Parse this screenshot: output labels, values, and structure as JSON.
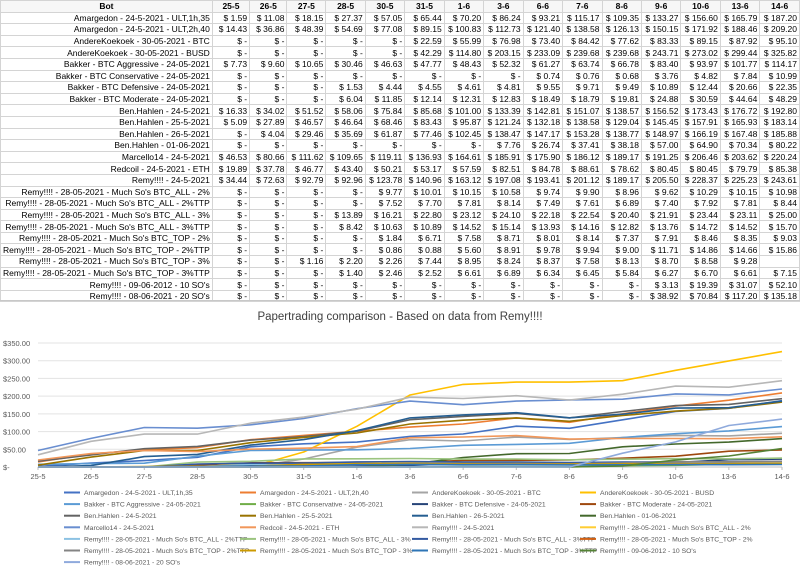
{
  "chart_data": {
    "type": "line",
    "title": "Papertrading comparison - Based on data from Remy!!!!",
    "header_bot": "Bot",
    "x": [
      "25-5",
      "26-5",
      "27-5",
      "28-5",
      "30-5",
      "31-5",
      "1-6",
      "3-6",
      "6-6",
      "7-6",
      "8-6",
      "9-6",
      "10-6",
      "13-6",
      "14-6"
    ],
    "yticks": [
      "$350.00",
      "$300.00",
      "$250.00",
      "$200.00",
      "$150.00",
      "$100.00",
      "$50.00",
      "$-"
    ],
    "ylim": [
      0,
      350
    ],
    "series": [
      {
        "name": "Amargedon - 24-5-2021 - ULT,1h,35",
        "color": "#4472c4",
        "cells": [
          "$ 1.59",
          "$ 11.08",
          "$ 18.15",
          "$ 27.37",
          "$ 57.05",
          "$ 65.44",
          "$ 70.20",
          "$ 86.24",
          "$ 93.21",
          "$ 115.17",
          "$ 109.35",
          "$ 133.27",
          "$ 156.60",
          "$ 165.79",
          "$ 187.20"
        ],
        "values": [
          1.59,
          11.08,
          18.15,
          27.37,
          57.05,
          65.44,
          70.2,
          86.24,
          93.21,
          115.17,
          109.35,
          133.27,
          156.6,
          165.79,
          187.2
        ]
      },
      {
        "name": "Amargedon - 24-5-2021 - ULT,2h,40",
        "color": "#ed7d31",
        "cells": [
          "$ 14.43",
          "$ 36.86",
          "$ 48.39",
          "$ 54.69",
          "$ 77.08",
          "$ 89.15",
          "$ 100.83",
          "$ 112.73",
          "$ 121.40",
          "$ 138.58",
          "$ 126.13",
          "$ 150.15",
          "$ 171.92",
          "$ 188.46",
          "$ 209.20"
        ],
        "values": [
          14.43,
          36.86,
          48.39,
          54.69,
          77.08,
          89.15,
          100.83,
          112.73,
          121.4,
          138.58,
          126.13,
          150.15,
          171.92,
          188.46,
          209.2
        ]
      },
      {
        "name": "AndereKoekoek - 30-05-2021 - BTC",
        "color": "#a5a5a5",
        "cells": [
          "$ -",
          "$ -",
          "$ -",
          "$ -",
          "$ -",
          "$ 22.59",
          "$ 55.99",
          "$ 76.98",
          "$ 73.40",
          "$ 84.42",
          "$ 77.62",
          "$ 83.33",
          "$ 89.15",
          "$ 87.92",
          "$ 95.10"
        ],
        "values": [
          0,
          0,
          0,
          0,
          0,
          22.59,
          55.99,
          76.98,
          73.4,
          84.42,
          77.62,
          83.33,
          89.15,
          87.92,
          95.1
        ]
      },
      {
        "name": "AndereKoekoek - 30-05-2021 - BUSD",
        "color": "#ffc000",
        "cells": [
          "$ -",
          "$ -",
          "$ -",
          "$ -",
          "$ -",
          "$ 42.29",
          "$ 114.80",
          "$ 203.15",
          "$ 233.09",
          "$ 239.68",
          "$ 239.68",
          "$ 243.71",
          "$ 273.02",
          "$ 299.44",
          "$ 325.82"
        ],
        "values": [
          0,
          0,
          0,
          0,
          0,
          42.29,
          114.8,
          203.15,
          233.09,
          239.68,
          239.68,
          243.71,
          273.02,
          299.44,
          325.82
        ]
      },
      {
        "name": "Bakker - BTC Aggressive - 24-05-2021",
        "color": "#5b9bd5",
        "cells": [
          "$ 7.73",
          "$ 9.60",
          "$ 10.65",
          "$ 30.46",
          "$ 46.63",
          "$ 47.77",
          "$ 48.43",
          "$ 52.32",
          "$ 61.27",
          "$ 63.74",
          "$ 66.78",
          "$ 83.40",
          "$ 93.97",
          "$ 101.77",
          "$ 114.17"
        ],
        "values": [
          7.73,
          9.6,
          10.65,
          30.46,
          46.63,
          47.77,
          48.43,
          52.32,
          61.27,
          63.74,
          66.78,
          83.4,
          93.97,
          101.77,
          114.17
        ]
      },
      {
        "name": "Bakker - BTC Conservative - 24-05-2021",
        "color": "#70ad47",
        "cells": [
          "$ -",
          "$ -",
          "$ -",
          "$ -",
          "$ -",
          "$ -",
          "$ -",
          "$ -",
          "$ 0.74",
          "$ 0.76",
          "$ 0.68",
          "$ 3.76",
          "$ 4.82",
          "$ 7.84",
          "$ 10.99"
        ],
        "values": [
          0,
          0,
          0,
          0,
          0,
          0,
          0,
          0,
          0.74,
          0.76,
          0.68,
          3.76,
          4.82,
          7.84,
          10.99
        ]
      },
      {
        "name": "Bakker - BTC Defensive - 24-05-2021",
        "color": "#264478",
        "cells": [
          "$ -",
          "$ -",
          "$ -",
          "$ 1.53",
          "$ 4.44",
          "$ 4.55",
          "$ 4.61",
          "$ 4.81",
          "$ 9.55",
          "$ 9.71",
          "$ 9.49",
          "$ 10.89",
          "$ 12.44",
          "$ 20.66",
          "$ 22.35"
        ],
        "values": [
          0,
          0,
          0,
          1.53,
          4.44,
          4.55,
          4.61,
          4.81,
          9.55,
          9.71,
          9.49,
          10.89,
          12.44,
          20.66,
          22.35
        ]
      },
      {
        "name": "Bakker - BTC Moderate - 24-05-2021",
        "color": "#9e480e",
        "cells": [
          "$ -",
          "$ -",
          "$ -",
          "$ 6.04",
          "$ 11.85",
          "$ 12.14",
          "$ 12.31",
          "$ 12.83",
          "$ 18.49",
          "$ 18.79",
          "$ 19.81",
          "$ 24.88",
          "$ 30.59",
          "$ 44.64",
          "$ 48.29"
        ],
        "values": [
          0,
          0,
          0,
          6.04,
          11.85,
          12.14,
          12.31,
          12.83,
          18.49,
          18.79,
          19.81,
          24.88,
          30.59,
          44.64,
          48.29
        ]
      },
      {
        "name": "Ben.Hahlen - 24-5-2021",
        "color": "#636363",
        "cells": [
          "$ 16.33",
          "$ 34.02",
          "$ 51.52",
          "$ 58.06",
          "$ 75.84",
          "$ 85.68",
          "$ 101.00",
          "$ 133.39",
          "$ 142.81",
          "$ 151.07",
          "$ 138.57",
          "$ 156.52",
          "$ 173.43",
          "$ 176.72",
          "$ 192.80"
        ],
        "values": [
          16.33,
          34.02,
          51.52,
          58.06,
          75.84,
          85.68,
          101.0,
          133.39,
          142.81,
          151.07,
          138.57,
          156.52,
          173.43,
          176.72,
          192.8
        ]
      },
      {
        "name": "Ben.Hahlen - 25-5-2021",
        "color": "#997300",
        "cells": [
          "$ 5.09",
          "$ 27.89",
          "$ 46.57",
          "$ 46.64",
          "$ 68.46",
          "$ 83.43",
          "$ 95.87",
          "$ 121.24",
          "$ 132.18",
          "$ 138.58",
          "$ 129.04",
          "$ 145.45",
          "$ 157.91",
          "$ 165.93",
          "$ 183.14"
        ],
        "values": [
          5.09,
          27.89,
          46.57,
          46.64,
          68.46,
          83.43,
          95.87,
          121.24,
          132.18,
          138.58,
          129.04,
          145.45,
          157.91,
          165.93,
          183.14
        ]
      },
      {
        "name": "Ben.Hahlen - 26-5-2021",
        "color": "#255e91",
        "cells": [
          "$ -",
          "$ 4.04",
          "$ 29.46",
          "$ 35.69",
          "$ 61.87",
          "$ 77.46",
          "$ 102.45",
          "$ 138.47",
          "$ 147.17",
          "$ 153.28",
          "$ 138.77",
          "$ 148.97",
          "$ 166.19",
          "$ 167.48",
          "$ 185.88"
        ],
        "values": [
          0,
          4.04,
          29.46,
          35.69,
          61.87,
          77.46,
          102.45,
          138.47,
          147.17,
          153.28,
          138.77,
          148.97,
          166.19,
          167.48,
          185.88
        ]
      },
      {
        "name": "Ben.Hahlen - 01-06-2021",
        "color": "#43682b",
        "cells": [
          "$ -",
          "$ -",
          "$ -",
          "$ -",
          "$ -",
          "$ -",
          "$ -",
          "$ 7.76",
          "$ 26.74",
          "$ 37.41",
          "$ 38.18",
          "$ 57.00",
          "$ 64.90",
          "$ 70.34",
          "$ 80.22"
        ],
        "values": [
          0,
          0,
          0,
          0,
          0,
          0,
          0,
          7.76,
          26.74,
          37.41,
          38.18,
          57.0,
          64.9,
          70.34,
          80.22
        ]
      },
      {
        "name": "Marcello14 - 24-5-2021",
        "color": "#698ed0",
        "cells": [
          "$ 46.53",
          "$ 80.66",
          "$ 111.62",
          "$ 109.65",
          "$ 119.11",
          "$ 136.93",
          "$ 164.61",
          "$ 185.91",
          "$ 175.90",
          "$ 186.12",
          "$ 189.17",
          "$ 191.25",
          "$ 206.46",
          "$ 203.62",
          "$ 220.24"
        ],
        "values": [
          46.53,
          80.66,
          111.62,
          109.65,
          119.11,
          136.93,
          164.61,
          185.91,
          175.9,
          186.12,
          189.17,
          191.25,
          206.46,
          203.62,
          220.24
        ]
      },
      {
        "name": "Redcoil - 24-5-2021 - ETH",
        "color": "#f1975a",
        "cells": [
          "$ 19.89",
          "$ 37.78",
          "$ 46.77",
          "$ 43.40",
          "$ 50.21",
          "$ 53.17",
          "$ 57.59",
          "$ 82.51",
          "$ 84.78",
          "$ 88.61",
          "$ 78.62",
          "$ 80.45",
          "$ 80.45",
          "$ 79.79",
          "$ 85.38"
        ],
        "values": [
          19.89,
          37.78,
          46.77,
          43.4,
          50.21,
          53.17,
          57.59,
          82.51,
          84.78,
          88.61,
          78.62,
          80.45,
          80.45,
          79.79,
          85.38
        ]
      },
      {
        "name": "Remy!!!! - 24-5-2021",
        "color": "#b7b7b7",
        "cells": [
          "$ 34.44",
          "$ 72.63",
          "$ 92.79",
          "$ 92.96",
          "$ 123.78",
          "$ 140.96",
          "$ 163.12",
          "$ 197.08",
          "$ 193.41",
          "$ 201.12",
          "$ 189.17",
          "$ 205.50",
          "$ 228.37",
          "$ 225.23",
          "$ 243.61"
        ],
        "values": [
          34.44,
          72.63,
          92.79,
          92.96,
          123.78,
          140.96,
          163.12,
          197.08,
          193.41,
          201.12,
          189.17,
          205.5,
          228.37,
          225.23,
          243.61
        ]
      },
      {
        "name": "Remy!!!! - 28-05-2021 - Much So's BTC_ALL - 2%",
        "color": "#ffcd33",
        "cells": [
          "$ -",
          "$ -",
          "$ -",
          "$ -",
          "$ 9.77",
          "$ 10.01",
          "$ 10.15",
          "$ 10.58",
          "$ 9.74",
          "$ 9.90",
          "$ 8.96",
          "$ 9.62",
          "$ 10.29",
          "$ 10.15",
          "$ 10.98"
        ],
        "values": [
          0,
          0,
          0,
          0,
          9.77,
          10.01,
          10.15,
          10.58,
          9.74,
          9.9,
          8.96,
          9.62,
          10.29,
          10.15,
          10.98
        ]
      },
      {
        "name": "Remy!!!! - 28-05-2021 - Much So's BTC_ALL - 2%TTP",
        "color": "#8cc2e3",
        "cells": [
          "$ -",
          "$ -",
          "$ -",
          "$ -",
          "$ 7.52",
          "$ 7.70",
          "$ 7.81",
          "$ 8.14",
          "$ 7.49",
          "$ 7.61",
          "$ 6.89",
          "$ 7.40",
          "$ 7.92",
          "$ 7.81",
          "$ 8.44"
        ],
        "values": [
          0,
          0,
          0,
          0,
          7.52,
          7.7,
          7.81,
          8.14,
          7.49,
          7.61,
          6.89,
          7.4,
          7.92,
          7.81,
          8.44
        ]
      },
      {
        "name": "Remy!!!! - 28-05-2021 - Much So's BTC_ALL - 3%",
        "color": "#9bc47f",
        "cells": [
          "$ -",
          "$ -",
          "$ -",
          "$ 13.89",
          "$ 16.21",
          "$ 22.80",
          "$ 23.12",
          "$ 24.10",
          "$ 22.18",
          "$ 22.54",
          "$ 20.40",
          "$ 21.91",
          "$ 23.44",
          "$ 23.11",
          "$ 25.00"
        ],
        "values": [
          0,
          0,
          0,
          13.89,
          16.21,
          22.8,
          23.12,
          24.1,
          22.18,
          22.54,
          20.4,
          21.91,
          23.44,
          23.11,
          25.0
        ]
      },
      {
        "name": "Remy!!!! - 28-05-2021 - Much So's BTC_ALL - 3%TTP",
        "color": "#335aa1",
        "cells": [
          "$ -",
          "$ -",
          "$ -",
          "$ 8.42",
          "$ 10.63",
          "$ 10.89",
          "$ 14.52",
          "$ 15.14",
          "$ 13.93",
          "$ 14.16",
          "$ 12.82",
          "$ 13.76",
          "$ 14.72",
          "$ 14.52",
          "$ 15.70"
        ],
        "values": [
          0,
          0,
          0,
          8.42,
          10.63,
          10.89,
          14.52,
          15.14,
          13.93,
          14.16,
          12.82,
          13.76,
          14.72,
          14.52,
          15.7
        ]
      },
      {
        "name": "Remy!!!! - 28-05-2021 - Much So's BTC_TOP - 2%",
        "color": "#d26012",
        "cells": [
          "$ -",
          "$ -",
          "$ -",
          "$ -",
          "$ 1.84",
          "$ 6.71",
          "$ 7.58",
          "$ 8.71",
          "$ 8.01",
          "$ 8.14",
          "$ 7.37",
          "$ 7.91",
          "$ 8.46",
          "$ 8.35",
          "$ 9.03"
        ],
        "values": [
          0,
          0,
          0,
          0,
          1.84,
          6.71,
          7.58,
          8.71,
          8.01,
          8.14,
          7.37,
          7.91,
          8.46,
          8.35,
          9.03
        ]
      },
      {
        "name": "Remy!!!! - 28-05-2021 - Much So's BTC_TOP - 2%TTP",
        "color": "#848484",
        "cells": [
          "$ -",
          "$ -",
          "$ -",
          "$ -",
          "$ 0.86",
          "$ 0.88",
          "$ 5.60",
          "$ 8.91",
          "$ 9.78",
          "$ 9.94",
          "$ 9.00",
          "$ 11.71",
          "$ 14.86",
          "$ 14.66",
          "$ 15.86"
        ],
        "values": [
          0,
          0,
          0,
          0,
          0.86,
          0.88,
          5.6,
          8.91,
          9.78,
          9.94,
          9.0,
          11.71,
          14.86,
          14.66,
          15.86
        ]
      },
      {
        "name": "Remy!!!! - 28-05-2021 - Much So's BTC_TOP - 3%",
        "color": "#cc9a00",
        "cells": [
          "$ -",
          "$ -",
          "$ 1.16",
          "$ 2.20",
          "$ 2.26",
          "$ 7.44",
          "$ 8.95",
          "$ 8.24",
          "$ 8.37",
          "$ 7.58",
          "$ 8.13",
          "$ 8.70",
          "$ 8.58",
          "$ 9.28",
          ""
        ],
        "values": [
          0,
          0,
          1.16,
          2.2,
          2.26,
          7.44,
          8.95,
          8.24,
          8.37,
          7.58,
          8.13,
          8.7,
          8.58,
          9.28,
          9.28
        ]
      },
      {
        "name": "Remy!!!! - 28-05-2021 - Much So's BTC_TOP - 3%TTP",
        "color": "#2e75b6",
        "cells": [
          "$ -",
          "$ -",
          "$ -",
          "$ 1.40",
          "$ 2.46",
          "$ 2.52",
          "$ 6.61",
          "$ 6.89",
          "$ 6.34",
          "$ 6.45",
          "$ 5.84",
          "$ 6.27",
          "$ 6.70",
          "$ 6.61",
          "$ 7.15"
        ],
        "values": [
          0,
          0,
          0,
          1.4,
          2.46,
          2.52,
          6.61,
          6.89,
          6.34,
          6.45,
          5.84,
          6.27,
          6.7,
          6.61,
          7.15
        ]
      },
      {
        "name": "Remy!!!! - 09-06-2012 - 10 SO's",
        "color": "#548235",
        "cells": [
          "$ -",
          "$ -",
          "$ -",
          "$ -",
          "$ -",
          "$ -",
          "$ -",
          "$ -",
          "$ -",
          "$ -",
          "$ -",
          "$ 3.13",
          "$ 19.39",
          "$ 31.07",
          "$ 52.10"
        ],
        "values": [
          0,
          0,
          0,
          0,
          0,
          0,
          0,
          0,
          0,
          0,
          0,
          3.13,
          19.39,
          31.07,
          52.1
        ]
      },
      {
        "name": "Remy!!!! - 08-06-2021 - 20 SO's",
        "color": "#8faadc",
        "cells": [
          "$ -",
          "$ -",
          "$ -",
          "$ -",
          "$ -",
          "$ -",
          "$ -",
          "$ -",
          "$ -",
          "$ -",
          "$ -",
          "$ 38.92",
          "$ 70.84",
          "$ 117.20",
          "$ 135.18"
        ],
        "values": [
          0,
          0,
          0,
          0,
          0,
          0,
          0,
          0,
          0,
          0,
          0,
          38.92,
          70.84,
          117.2,
          135.18
        ]
      }
    ]
  }
}
